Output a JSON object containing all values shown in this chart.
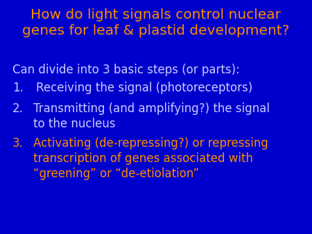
{
  "bg_color": "#0000CC",
  "title_color": "#FF8C00",
  "body_color_white": "#CCCCFF",
  "body_color_orange": "#FF8C00",
  "title_line1": "How do light signals control nuclear",
  "title_line2": "genes for leaf & plastid development?",
  "intro_text": "Can divide into 3 basic steps (or parts):",
  "item1_num": "1.",
  "item1_text": "Receiving the signal (photoreceptors)",
  "item2_num": "2.",
  "item2_line1": "Transmitting (and amplifying?) the signal",
  "item2_line2": "to the nucleus",
  "item3_num": "3.",
  "item3_line1": "Activating (de-repressing?) or repressing",
  "item3_line2": "transcription of genes associated with",
  "item3_line3": "“greening” or “de-etiolation”",
  "title_fontsize": 14.5,
  "body_fontsize": 12.0,
  "figsize": [
    4.5,
    3.38
  ],
  "dpi": 100
}
